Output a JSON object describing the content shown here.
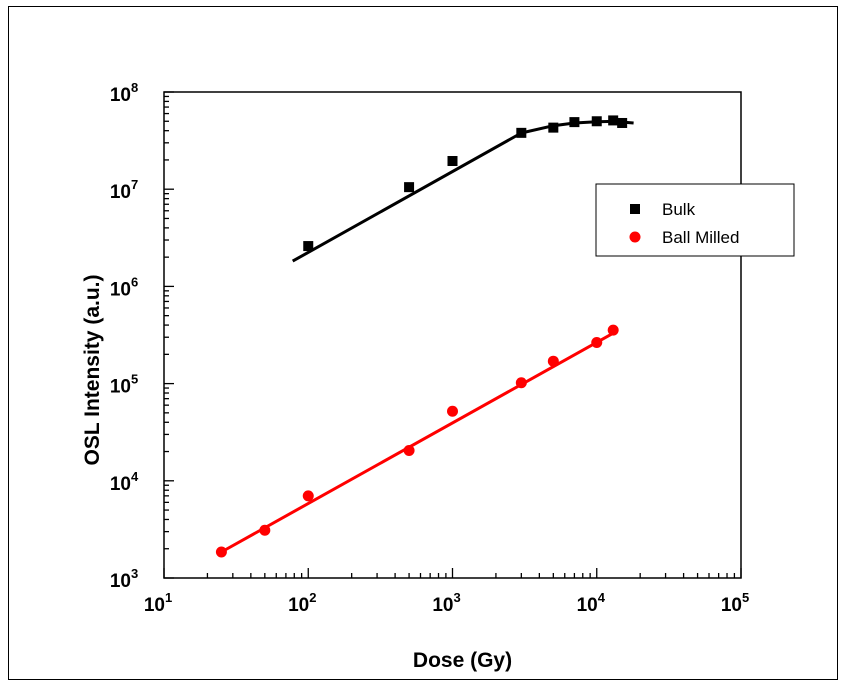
{
  "chart_data": {
    "type": "scatter",
    "xlabel": "Dose (Gy)",
    "ylabel": "OSL Intensity (a.u.)",
    "x_scale": "log",
    "y_scale": "log",
    "xlim": [
      10,
      100000
    ],
    "ylim": [
      1000,
      100000000
    ],
    "x_ticks": [
      {
        "value": 10,
        "base": "10",
        "exp": "1"
      },
      {
        "value": 100,
        "base": "10",
        "exp": "2"
      },
      {
        "value": 1000,
        "base": "10",
        "exp": "3"
      },
      {
        "value": 10000,
        "base": "10",
        "exp": "4"
      },
      {
        "value": 100000,
        "base": "10",
        "exp": "5"
      }
    ],
    "y_ticks": [
      {
        "value": 1000,
        "base": "10",
        "exp": "3"
      },
      {
        "value": 10000,
        "base": "10",
        "exp": "4"
      },
      {
        "value": 100000,
        "base": "10",
        "exp": "5"
      },
      {
        "value": 1000000,
        "base": "10",
        "exp": "6"
      },
      {
        "value": 10000000,
        "base": "10",
        "exp": "7"
      },
      {
        "value": 100000000,
        "base": "10",
        "exp": "8"
      }
    ],
    "legend_position": "right",
    "series": [
      {
        "name": "Bulk",
        "marker": "square",
        "color": "#000000",
        "points": [
          [
            100,
            2600000
          ],
          [
            500,
            10500000
          ],
          [
            1000,
            19500000
          ],
          [
            3000,
            38000000
          ],
          [
            5000,
            43000000
          ],
          [
            7000,
            49000000
          ],
          [
            10000,
            50000000
          ],
          [
            13000,
            51000000
          ],
          [
            15000,
            48000000
          ]
        ],
        "fit": [
          [
            78,
            1820000
          ],
          [
            3000,
            37900000
          ],
          [
            5000,
            45000000
          ],
          [
            7000,
            48000000
          ],
          [
            10000,
            49500000
          ],
          [
            13000,
            49800000
          ],
          [
            18000,
            48000000
          ]
        ]
      },
      {
        "name": "Ball Milled",
        "marker": "circle",
        "color": "#ff0000",
        "points": [
          [
            25,
            1850
          ],
          [
            50,
            3100
          ],
          [
            100,
            7000
          ],
          [
            500,
            20500
          ],
          [
            1000,
            52000
          ],
          [
            3000,
            102000
          ],
          [
            5000,
            170000
          ],
          [
            10000,
            265000
          ],
          [
            13000,
            355000
          ]
        ],
        "fit": [
          [
            25,
            1850
          ],
          [
            13000,
            330000
          ]
        ]
      }
    ]
  }
}
